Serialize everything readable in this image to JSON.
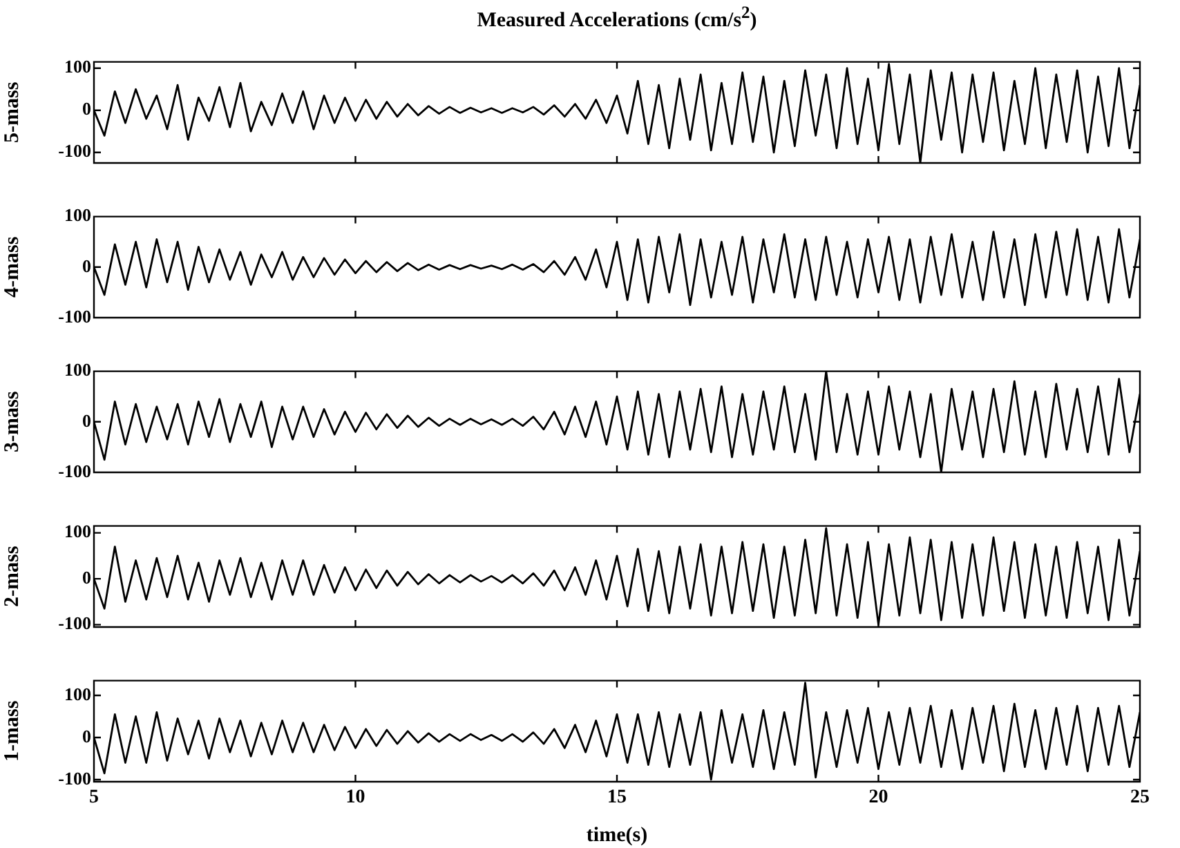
{
  "chart_data": [
    {
      "type": "line",
      "title": "Measured Accelerations (cm/s$^{2}$)",
      "ylabel": "5-mass",
      "color": "#000000",
      "tick_labels": "y",
      "xlim": [
        5,
        25
      ],
      "xticks": [
        5,
        10,
        15,
        20,
        25
      ],
      "ylim": [
        -125,
        115
      ],
      "yticks": [
        -100,
        0,
        100
      ],
      "x": [
        5,
        5.2,
        5.4,
        5.6,
        5.8,
        6,
        6.2,
        6.4,
        6.6,
        6.8,
        7,
        7.2,
        7.4,
        7.6,
        7.8,
        8,
        8.2,
        8.4,
        8.6,
        8.8,
        9,
        9.2,
        9.4,
        9.6,
        9.8,
        10,
        10.2,
        10.4,
        10.6,
        10.8,
        11,
        11.2,
        11.4,
        11.6,
        11.8,
        12,
        12.2,
        12.4,
        12.6,
        12.8,
        13,
        13.2,
        13.4,
        13.6,
        13.8,
        14,
        14.2,
        14.4,
        14.6,
        14.8,
        15,
        15.2,
        15.4,
        15.6,
        15.8,
        16,
        16.2,
        16.4,
        16.6,
        16.8,
        17,
        17.2,
        17.4,
        17.6,
        17.8,
        18,
        18.2,
        18.4,
        18.6,
        18.8,
        19,
        19.2,
        19.4,
        19.6,
        19.8,
        20,
        20.2,
        20.4,
        20.6,
        20.8,
        21,
        21.2,
        21.4,
        21.6,
        21.8,
        22,
        22.2,
        22.4,
        22.6,
        22.8,
        23,
        23.2,
        23.4,
        23.6,
        23.8,
        24,
        24.2,
        24.4,
        24.6,
        24.8,
        25
      ],
      "values": [
        0,
        -60,
        45,
        -30,
        50,
        -20,
        35,
        -45,
        60,
        -70,
        30,
        -25,
        55,
        -40,
        65,
        -50,
        20,
        -35,
        40,
        -30,
        45,
        -45,
        35,
        -30,
        30,
        -25,
        25,
        -20,
        20,
        -15,
        15,
        -12,
        10,
        -8,
        8,
        -6,
        6,
        -5,
        5,
        -6,
        5,
        -5,
        8,
        -10,
        12,
        -15,
        15,
        -20,
        25,
        -30,
        35,
        -55,
        70,
        -80,
        60,
        -90,
        75,
        -70,
        85,
        -95,
        65,
        -80,
        90,
        -75,
        80,
        -100,
        70,
        -85,
        95,
        -60,
        85,
        -90,
        100,
        -80,
        75,
        -95,
        110,
        -80,
        85,
        -125,
        95,
        -70,
        90,
        -100,
        85,
        -75,
        90,
        -95,
        70,
        -80,
        100,
        -90,
        85,
        -75,
        95,
        -100,
        80,
        -85,
        100,
        -90,
        60
      ]
    },
    {
      "type": "line",
      "ylabel": "4-mass",
      "color": "#000000",
      "tick_labels": "y",
      "xlim": [
        5,
        25
      ],
      "xticks": [
        5,
        10,
        15,
        20,
        25
      ],
      "ylim": [
        -100,
        100
      ],
      "yticks": [
        -100,
        0,
        100
      ],
      "x": [
        5,
        5.2,
        5.4,
        5.6,
        5.8,
        6,
        6.2,
        6.4,
        6.6,
        6.8,
        7,
        7.2,
        7.4,
        7.6,
        7.8,
        8,
        8.2,
        8.4,
        8.6,
        8.8,
        9,
        9.2,
        9.4,
        9.6,
        9.8,
        10,
        10.2,
        10.4,
        10.6,
        10.8,
        11,
        11.2,
        11.4,
        11.6,
        11.8,
        12,
        12.2,
        12.4,
        12.6,
        12.8,
        13,
        13.2,
        13.4,
        13.6,
        13.8,
        14,
        14.2,
        14.4,
        14.6,
        14.8,
        15,
        15.2,
        15.4,
        15.6,
        15.8,
        16,
        16.2,
        16.4,
        16.6,
        16.8,
        17,
        17.2,
        17.4,
        17.6,
        17.8,
        18,
        18.2,
        18.4,
        18.6,
        18.8,
        19,
        19.2,
        19.4,
        19.6,
        19.8,
        20,
        20.2,
        20.4,
        20.6,
        20.8,
        21,
        21.2,
        21.4,
        21.6,
        21.8,
        22,
        22.2,
        22.4,
        22.6,
        22.8,
        23,
        23.2,
        23.4,
        23.6,
        23.8,
        24,
        24.2,
        24.4,
        24.6,
        24.8,
        25
      ],
      "values": [
        0,
        -55,
        45,
        -35,
        50,
        -40,
        55,
        -30,
        50,
        -45,
        40,
        -30,
        35,
        -25,
        30,
        -35,
        25,
        -20,
        30,
        -25,
        20,
        -20,
        18,
        -15,
        15,
        -12,
        12,
        -10,
        10,
        -8,
        8,
        -6,
        5,
        -5,
        4,
        -4,
        4,
        -3,
        3,
        -4,
        5,
        -5,
        6,
        -10,
        12,
        -15,
        20,
        -25,
        35,
        -40,
        50,
        -65,
        55,
        -70,
        60,
        -50,
        65,
        -75,
        55,
        -60,
        50,
        -55,
        60,
        -70,
        55,
        -50,
        65,
        -60,
        55,
        -65,
        60,
        -55,
        50,
        -60,
        55,
        -50,
        60,
        -65,
        55,
        -70,
        60,
        -55,
        65,
        -60,
        50,
        -65,
        70,
        -60,
        55,
        -75,
        65,
        -60,
        70,
        -55,
        75,
        -65,
        60,
        -70,
        75,
        -60,
        55
      ]
    },
    {
      "type": "line",
      "ylabel": "3-mass",
      "color": "#000000",
      "tick_labels": "y",
      "xlim": [
        5,
        25
      ],
      "xticks": [
        5,
        10,
        15,
        20,
        25
      ],
      "ylim": [
        -100,
        100
      ],
      "yticks": [
        -100,
        0,
        100
      ],
      "x": [
        5,
        5.2,
        5.4,
        5.6,
        5.8,
        6,
        6.2,
        6.4,
        6.6,
        6.8,
        7,
        7.2,
        7.4,
        7.6,
        7.8,
        8,
        8.2,
        8.4,
        8.6,
        8.8,
        9,
        9.2,
        9.4,
        9.6,
        9.8,
        10,
        10.2,
        10.4,
        10.6,
        10.8,
        11,
        11.2,
        11.4,
        11.6,
        11.8,
        12,
        12.2,
        12.4,
        12.6,
        12.8,
        13,
        13.2,
        13.4,
        13.6,
        13.8,
        14,
        14.2,
        14.4,
        14.6,
        14.8,
        15,
        15.2,
        15.4,
        15.6,
        15.8,
        16,
        16.2,
        16.4,
        16.6,
        16.8,
        17,
        17.2,
        17.4,
        17.6,
        17.8,
        18,
        18.2,
        18.4,
        18.6,
        18.8,
        19,
        19.2,
        19.4,
        19.6,
        19.8,
        20,
        20.2,
        20.4,
        20.6,
        20.8,
        21,
        21.2,
        21.4,
        21.6,
        21.8,
        22,
        22.2,
        22.4,
        22.6,
        22.8,
        23,
        23.2,
        23.4,
        23.6,
        23.8,
        24,
        24.2,
        24.4,
        24.6,
        24.8,
        25
      ],
      "values": [
        0,
        -75,
        40,
        -45,
        35,
        -40,
        30,
        -35,
        35,
        -45,
        40,
        -30,
        45,
        -40,
        35,
        -30,
        40,
        -50,
        30,
        -35,
        30,
        -30,
        25,
        -25,
        20,
        -20,
        18,
        -15,
        15,
        -12,
        12,
        -10,
        8,
        -8,
        6,
        -6,
        6,
        -5,
        5,
        -6,
        6,
        -8,
        10,
        -15,
        20,
        -25,
        30,
        -30,
        40,
        -45,
        50,
        -55,
        60,
        -65,
        55,
        -70,
        60,
        -55,
        65,
        -60,
        70,
        -70,
        55,
        -65,
        60,
        -55,
        70,
        -60,
        55,
        -75,
        100,
        -60,
        55,
        -65,
        60,
        -65,
        70,
        -55,
        60,
        -70,
        55,
        -100,
        65,
        -55,
        60,
        -70,
        65,
        -60,
        80,
        -65,
        60,
        -70,
        75,
        -55,
        65,
        -60,
        70,
        -65,
        85,
        -60,
        55
      ]
    },
    {
      "type": "line",
      "ylabel": "2-mass",
      "color": "#000000",
      "tick_labels": "y",
      "xlim": [
        5,
        25
      ],
      "xticks": [
        5,
        10,
        15,
        20,
        25
      ],
      "ylim": [
        -105,
        115
      ],
      "yticks": [
        -100,
        0,
        100
      ],
      "x": [
        5,
        5.2,
        5.4,
        5.6,
        5.8,
        6,
        6.2,
        6.4,
        6.6,
        6.8,
        7,
        7.2,
        7.4,
        7.6,
        7.8,
        8,
        8.2,
        8.4,
        8.6,
        8.8,
        9,
        9.2,
        9.4,
        9.6,
        9.8,
        10,
        10.2,
        10.4,
        10.6,
        10.8,
        11,
        11.2,
        11.4,
        11.6,
        11.8,
        12,
        12.2,
        12.4,
        12.6,
        12.8,
        13,
        13.2,
        13.4,
        13.6,
        13.8,
        14,
        14.2,
        14.4,
        14.6,
        14.8,
        15,
        15.2,
        15.4,
        15.6,
        15.8,
        16,
        16.2,
        16.4,
        16.6,
        16.8,
        17,
        17.2,
        17.4,
        17.6,
        17.8,
        18,
        18.2,
        18.4,
        18.6,
        18.8,
        19,
        19.2,
        19.4,
        19.6,
        19.8,
        20,
        20.2,
        20.4,
        20.6,
        20.8,
        21,
        21.2,
        21.4,
        21.6,
        21.8,
        22,
        22.2,
        22.4,
        22.6,
        22.8,
        23,
        23.2,
        23.4,
        23.6,
        23.8,
        24,
        24.2,
        24.4,
        24.6,
        24.8,
        25
      ],
      "values": [
        0,
        -65,
        70,
        -50,
        40,
        -45,
        45,
        -40,
        50,
        -45,
        35,
        -50,
        40,
        -35,
        45,
        -40,
        35,
        -45,
        40,
        -35,
        40,
        -35,
        30,
        -30,
        25,
        -25,
        20,
        -20,
        18,
        -15,
        15,
        -12,
        10,
        -10,
        8,
        -8,
        8,
        -6,
        6,
        -8,
        8,
        -10,
        12,
        -15,
        18,
        -25,
        25,
        -35,
        40,
        -45,
        50,
        -60,
        65,
        -70,
        60,
        -75,
        70,
        -65,
        75,
        -80,
        70,
        -75,
        80,
        -70,
        75,
        -85,
        70,
        -80,
        85,
        -75,
        110,
        -80,
        75,
        -85,
        80,
        -100,
        75,
        -80,
        90,
        -75,
        85,
        -90,
        80,
        -85,
        75,
        -80,
        90,
        -70,
        80,
        -85,
        75,
        -80,
        70,
        -85,
        80,
        -75,
        70,
        -90,
        85,
        -80,
        60
      ]
    },
    {
      "type": "line",
      "ylabel": "1-mass",
      "xlabel": "time(s)",
      "color": "#000000",
      "xlim": [
        5,
        25
      ],
      "xticks": [
        5,
        10,
        15,
        20,
        25
      ],
      "ylim": [
        -105,
        135
      ],
      "yticks": [
        -100,
        0,
        100
      ],
      "x": [
        5,
        5.2,
        5.4,
        5.6,
        5.8,
        6,
        6.2,
        6.4,
        6.6,
        6.8,
        7,
        7.2,
        7.4,
        7.6,
        7.8,
        8,
        8.2,
        8.4,
        8.6,
        8.8,
        9,
        9.2,
        9.4,
        9.6,
        9.8,
        10,
        10.2,
        10.4,
        10.6,
        10.8,
        11,
        11.2,
        11.4,
        11.6,
        11.8,
        12,
        12.2,
        12.4,
        12.6,
        12.8,
        13,
        13.2,
        13.4,
        13.6,
        13.8,
        14,
        14.2,
        14.4,
        14.6,
        14.8,
        15,
        15.2,
        15.4,
        15.6,
        15.8,
        16,
        16.2,
        16.4,
        16.6,
        16.8,
        17,
        17.2,
        17.4,
        17.6,
        17.8,
        18,
        18.2,
        18.4,
        18.6,
        18.8,
        19,
        19.2,
        19.4,
        19.6,
        19.8,
        20,
        20.2,
        20.4,
        20.6,
        20.8,
        21,
        21.2,
        21.4,
        21.6,
        21.8,
        22,
        22.2,
        22.4,
        22.6,
        22.8,
        23,
        23.2,
        23.4,
        23.6,
        23.8,
        24,
        24.2,
        24.4,
        24.6,
        24.8,
        25
      ],
      "values": [
        0,
        -85,
        55,
        -60,
        50,
        -60,
        60,
        -55,
        45,
        -40,
        40,
        -50,
        45,
        -35,
        40,
        -45,
        35,
        -40,
        40,
        -35,
        35,
        -35,
        30,
        -30,
        25,
        -25,
        20,
        -20,
        18,
        -15,
        15,
        -12,
        10,
        -10,
        8,
        -8,
        8,
        -6,
        6,
        -8,
        8,
        -10,
        12,
        -15,
        20,
        -25,
        30,
        -35,
        40,
        -45,
        55,
        -60,
        55,
        -65,
        60,
        -70,
        55,
        -65,
        60,
        -100,
        65,
        -60,
        55,
        -70,
        65,
        -75,
        60,
        -65,
        130,
        -95,
        60,
        -70,
        65,
        -60,
        70,
        -75,
        60,
        -65,
        70,
        -60,
        75,
        -70,
        65,
        -75,
        70,
        -60,
        75,
        -80,
        80,
        -70,
        65,
        -75,
        70,
        -65,
        75,
        -80,
        70,
        -65,
        75,
        -70,
        60
      ]
    }
  ]
}
